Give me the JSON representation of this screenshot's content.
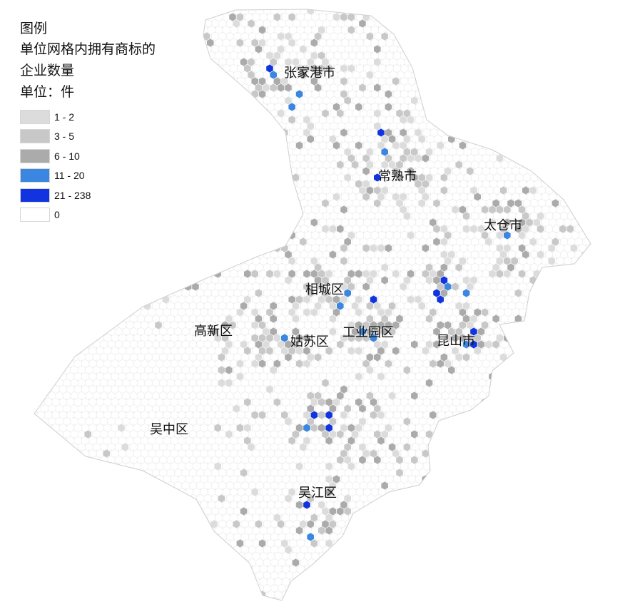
{
  "legend": {
    "title": "图例",
    "subtitle_line1": "单位网格内拥有商标的",
    "subtitle_line2": "企业数量",
    "unit": "单位：件",
    "items": [
      {
        "label": "1 - 2",
        "color": "#dcdcdc"
      },
      {
        "label": "3 - 5",
        "color": "#c8c8c8"
      },
      {
        "label": "6 - 10",
        "color": "#ababab"
      },
      {
        "label": "11 - 20",
        "color": "#3a86e0"
      },
      {
        "label": "21 - 238",
        "color": "#1234e0"
      },
      {
        "label": "0",
        "color": "#ffffff"
      }
    ]
  },
  "places": {
    "zhangjiagang": "张家港市",
    "changshu": "常熟市",
    "taicang": "太仓市",
    "xiangcheng": "相城区",
    "gaoxin": "高新区",
    "gusu": "姑苏区",
    "yuanqu": "工业园区",
    "kunshan": "昆山市",
    "wuzhong": "吴中区",
    "wujiang": "吴江区"
  },
  "colors": {
    "boundary": "#cfcfcf",
    "hex_outline": "#e6e6e6"
  }
}
